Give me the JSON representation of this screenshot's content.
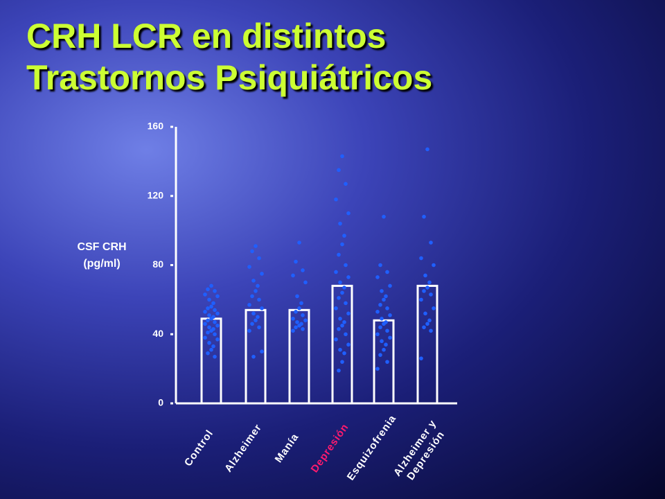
{
  "chart_data": {
    "type": "bar_scatter",
    "title": "CRH LCR en distintos Trastornos Psiquiátricos",
    "y_label": "CSF CRH (pg/ml)",
    "categories": [
      "Control",
      "Alzheimer",
      "Manía",
      "Depresión",
      "Esquizofrenia",
      "Alzheimer y Depresión"
    ],
    "label_colors": [
      "#ffffff",
      "#ffffff",
      "#ffffff",
      "#ff1a6e",
      "#ffffff",
      "#ffffff"
    ],
    "values": [
      49,
      54,
      54,
      68,
      48,
      68
    ],
    "points": [
      [
        68,
        66,
        65,
        63,
        62,
        60,
        58,
        56,
        55,
        54,
        53,
        52,
        51,
        50,
        49,
        48,
        47,
        46,
        45,
        44,
        43,
        42,
        41,
        40,
        38,
        37,
        35,
        33,
        31,
        29,
        27
      ],
      [
        91,
        88,
        84,
        79,
        75,
        71,
        68,
        65,
        62,
        60,
        57,
        55,
        52,
        50,
        48,
        46,
        44,
        42,
        30,
        27
      ],
      [
        93,
        82,
        77,
        74,
        70,
        62,
        58,
        55,
        53,
        51,
        49,
        48,
        47,
        46,
        45,
        44,
        43,
        42
      ],
      [
        143,
        135,
        127,
        118,
        110,
        104,
        97,
        92,
        86,
        80,
        76,
        73,
        70,
        67,
        64,
        61,
        58,
        55,
        52,
        49,
        47,
        45,
        43,
        40,
        37,
        34,
        31,
        29,
        24,
        19
      ],
      [
        108,
        80,
        76,
        73,
        68,
        65,
        62,
        60,
        57,
        55,
        53,
        51,
        49,
        47,
        46,
        44,
        42,
        40,
        38,
        36,
        34,
        31,
        28,
        24,
        20
      ],
      [
        147,
        108,
        93,
        84,
        80,
        74,
        70,
        67,
        65,
        63,
        60,
        55,
        52,
        48,
        46,
        44,
        42,
        26
      ]
    ],
    "bar_color": "#ffffff",
    "point_color": "#1f5fff",
    "ylim": [
      0,
      160
    ],
    "yticks": [
      0,
      40,
      80,
      120,
      160
    ]
  }
}
